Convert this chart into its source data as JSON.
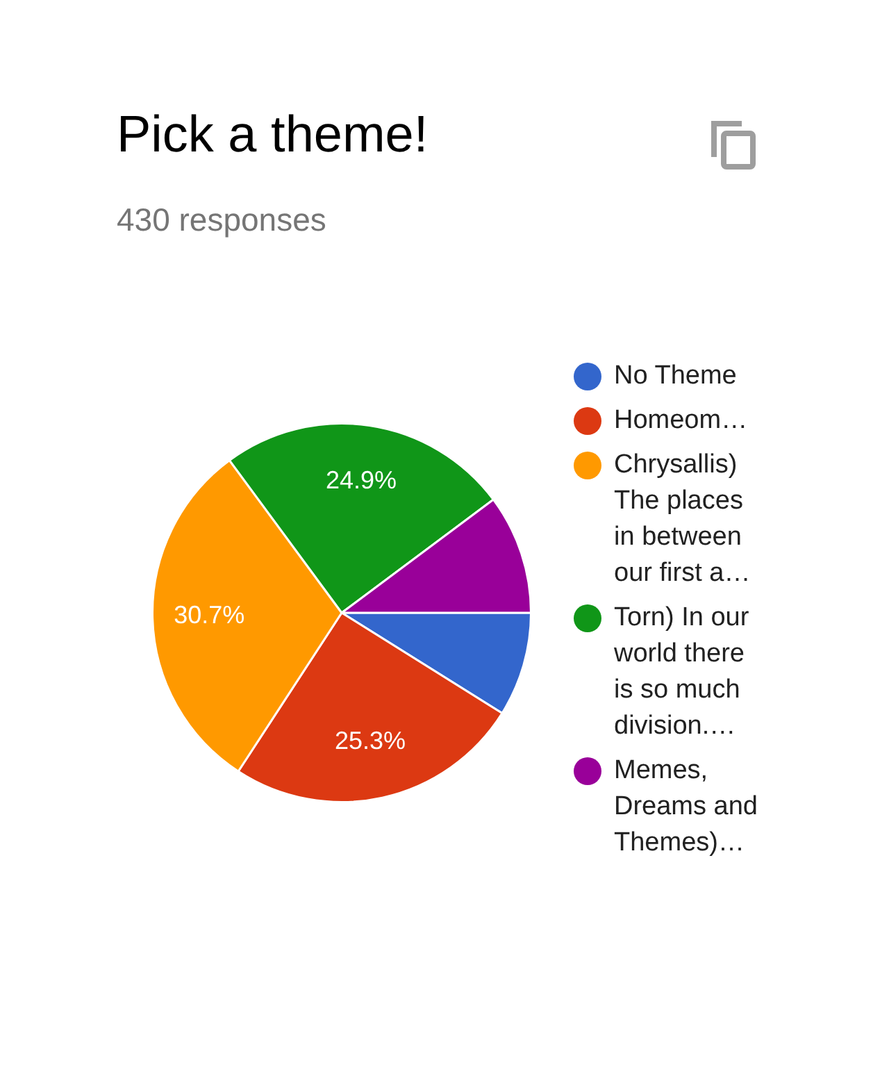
{
  "chart_data": {
    "type": "pie",
    "title": "Pick a theme!",
    "subtitle": "430 responses",
    "categories": [
      "No Theme",
      "Homeom…",
      "Chrysallis) The places in between our first a…",
      "Torn) In our world there is so much division.…",
      "Memes, Dreams and Themes)…"
    ],
    "values": [
      8.9,
      25.3,
      30.7,
      24.9,
      10.2
    ],
    "colors": [
      "#3366cc",
      "#dc3912",
      "#ff9900",
      "#109618",
      "#990099"
    ],
    "value_labels": [
      null,
      "25.3%",
      "30.7%",
      "24.9%",
      null
    ],
    "legend": "right"
  }
}
